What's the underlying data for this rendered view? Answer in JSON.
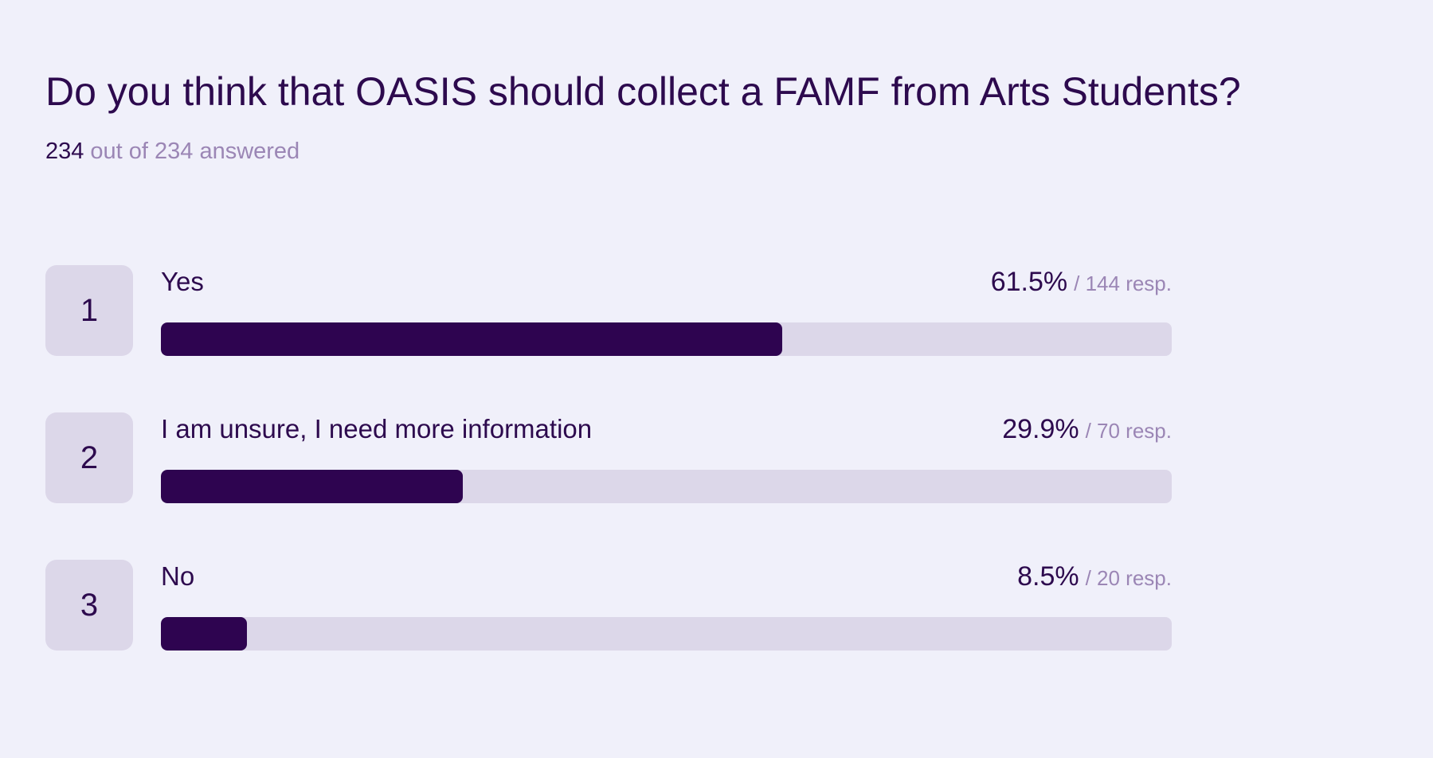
{
  "question": {
    "title": "Do you think that OASIS should collect a FAMF from Arts Students?",
    "answered_count": "234",
    "answered_text": "out of 234 answered",
    "options": [
      {
        "index": "1",
        "label": "Yes",
        "percent": 61.5,
        "percent_label": "61.5%",
        "responses_label": "/ 144 resp."
      },
      {
        "index": "2",
        "label": "I am unsure, I need more information",
        "percent": 29.9,
        "percent_label": "29.9%",
        "responses_label": "/ 70 resp."
      },
      {
        "index": "3",
        "label": "No",
        "percent": 8.5,
        "percent_label": "8.5%",
        "responses_label": "/ 20 resp."
      }
    ]
  }
}
